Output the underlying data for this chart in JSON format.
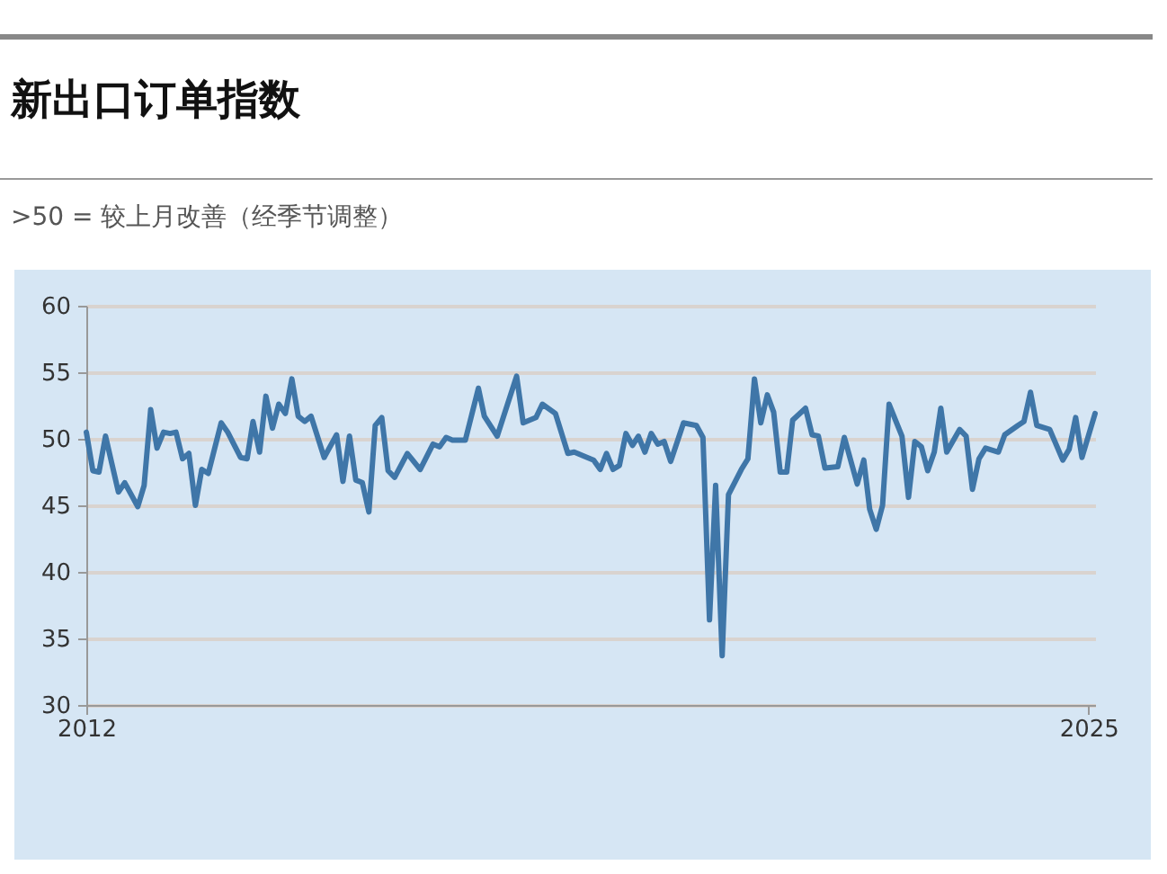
{
  "chart_data": {
    "type": "line",
    "title": "新出口订单指数",
    "subtitle": ">50 = 较上月改善（经季节调整）",
    "x": [
      "2012-01",
      "2012-02",
      "2012-03",
      "2012-04",
      "2012-06",
      "2012-07",
      "2012-09",
      "2012-10",
      "2012-11",
      "2012-12",
      "2013-01",
      "2013-02",
      "2013-03",
      "2013-04",
      "2013-05",
      "2013-06",
      "2013-07",
      "2013-08",
      "2013-10",
      "2013-11",
      "2014-01",
      "2014-02",
      "2014-03",
      "2014-04",
      "2014-05",
      "2014-06",
      "2014-07",
      "2014-08",
      "2014-09",
      "2014-10",
      "2014-11",
      "2014-12",
      "2015-02",
      "2015-04",
      "2015-05",
      "2015-06",
      "2015-07",
      "2015-08",
      "2015-09",
      "2015-10",
      "2015-11",
      "2015-12",
      "2016-01",
      "2016-03",
      "2016-05",
      "2016-07",
      "2016-08",
      "2016-09",
      "2016-10",
      "2016-12",
      "2017-02",
      "2017-03",
      "2017-05",
      "2017-08",
      "2017-09",
      "2017-11",
      "2017-12",
      "2018-02",
      "2018-04",
      "2018-05",
      "2018-07",
      "2018-08",
      "2018-09",
      "2018-10",
      "2018-11",
      "2018-12",
      "2019-01",
      "2019-02",
      "2019-03",
      "2019-04",
      "2019-05",
      "2019-06",
      "2019-07",
      "2019-08",
      "2019-10",
      "2019-12",
      "2020-01",
      "2020-02",
      "2020-03",
      "2020-04",
      "2020-05",
      "2020-07",
      "2020-08",
      "2020-09",
      "2020-10",
      "2020-11",
      "2020-12",
      "2021-01",
      "2021-02",
      "2021-03",
      "2021-05",
      "2021-06",
      "2021-07",
      "2021-08",
      "2021-10",
      "2021-11",
      "2022-01",
      "2022-02",
      "2022-03",
      "2022-04",
      "2022-05",
      "2022-06",
      "2022-08",
      "2022-09",
      "2022-10",
      "2022-11",
      "2022-12",
      "2023-01",
      "2023-02",
      "2023-03",
      "2023-05",
      "2023-06",
      "2023-07",
      "2023-08",
      "2023-09",
      "2023-11",
      "2023-12",
      "2024-02",
      "2024-03",
      "2024-04",
      "2024-05",
      "2024-07",
      "2024-09",
      "2024-10",
      "2024-11",
      "2024-12",
      "2025-02"
    ],
    "series": [
      {
        "color": "#3f76a8",
        "values": [
          50.5,
          47.6,
          47.5,
          50.2,
          46.0,
          46.7,
          44.9,
          46.5,
          52.2,
          49.3,
          50.5,
          50.4,
          50.5,
          48.5,
          48.9,
          45.0,
          47.7,
          47.4,
          51.2,
          50.5,
          48.6,
          48.5,
          51.3,
          49.0,
          53.2,
          50.8,
          52.6,
          51.9,
          54.5,
          51.7,
          51.3,
          51.7,
          48.6,
          50.3,
          46.8,
          50.2,
          46.9,
          46.7,
          44.5,
          51.0,
          51.6,
          47.6,
          47.1,
          48.9,
          47.7,
          49.6,
          49.4,
          50.1,
          49.9,
          49.9,
          53.8,
          51.7,
          50.2,
          54.7,
          51.2,
          51.6,
          52.6,
          51.9,
          48.9,
          49.0,
          48.6,
          48.4,
          47.7,
          48.9,
          47.7,
          48.0,
          50.4,
          49.5,
          50.2,
          49.0,
          50.4,
          49.6,
          49.8,
          48.3,
          51.2,
          51.0,
          50.1,
          36.4,
          46.5,
          33.7,
          45.8,
          47.7,
          48.5,
          54.5,
          51.2,
          53.3,
          52.0,
          47.5,
          47.5,
          51.4,
          52.3,
          50.3,
          50.2,
          47.8,
          47.9,
          50.1,
          46.6,
          48.4,
          44.7,
          43.2,
          45.0,
          52.6,
          50.2,
          45.6,
          49.8,
          49.4,
          47.6,
          49.0,
          52.3,
          49.0,
          50.7,
          50.2,
          46.2,
          48.5,
          49.3,
          49.0,
          50.3,
          51.0,
          51.3,
          53.5,
          51.0,
          50.7,
          48.4,
          49.2,
          51.6,
          48.6,
          51.9
        ]
      }
    ],
    "xlim": [
      "2012-01",
      "2025-02"
    ],
    "xticks": [
      "2012",
      "2025"
    ],
    "ylim": [
      30,
      60
    ],
    "yticks": [
      30,
      35,
      40,
      45,
      50,
      55,
      60
    ],
    "grid": "y",
    "marker": "none",
    "line_style": "solid"
  }
}
